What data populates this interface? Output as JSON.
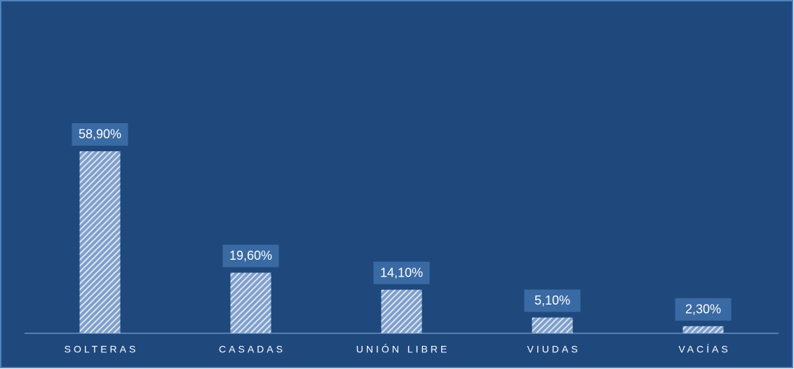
{
  "chart_data": {
    "type": "bar",
    "categories": [
      "SOLTERAS",
      "CASADAS",
      "UNIÓN LIBRE",
      "VIUDAS",
      "VACÍAS"
    ],
    "values": [
      58.9,
      19.6,
      14.1,
      5.1,
      2.3
    ],
    "value_labels": [
      "58,90%",
      "19,60%",
      "14,10%",
      "5,10%",
      "2,30%"
    ],
    "color": "#dbe5f1",
    "ylim": [
      0,
      70
    ]
  }
}
